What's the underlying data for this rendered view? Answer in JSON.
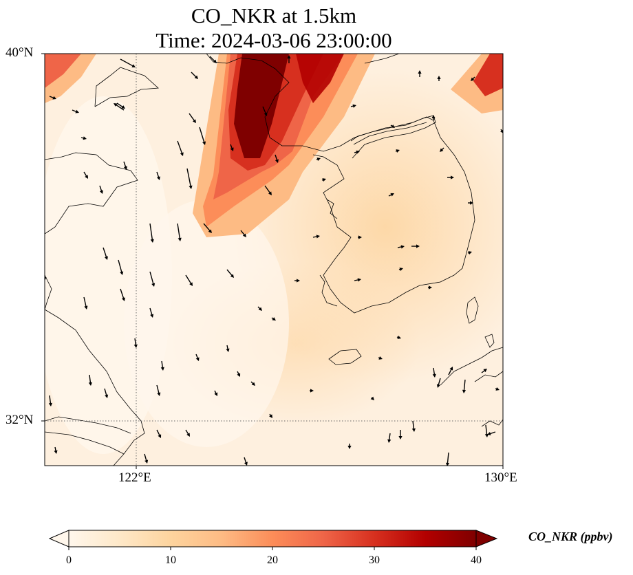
{
  "title": {
    "line1": "CO_NKR at 1.5km",
    "line2": "Time: 2024-03-06 23:00:00"
  },
  "map": {
    "lon_range": [
      120,
      130
    ],
    "lat_range": [
      31,
      40
    ],
    "gridlines": {
      "lon": [
        122
      ],
      "lat": [
        32
      ]
    },
    "lat_labels": [
      "40°N",
      "32°N"
    ],
    "lon_labels": [
      "122°E",
      "130°E"
    ],
    "field_color_background": "#fef0df",
    "plume_color": "#7f0000"
  },
  "colorbar": {
    "label": "CO_NKR (ppbv)",
    "min": 0,
    "max": 40,
    "ticks": [
      {
        "value": 0,
        "label": "0"
      },
      {
        "value": 10,
        "label": "10"
      },
      {
        "value": 20,
        "label": "20"
      },
      {
        "value": 30,
        "label": "30"
      },
      {
        "value": 40,
        "label": "40"
      }
    ],
    "colors": [
      "#fff7ec",
      "#fee8c8",
      "#fdd49e",
      "#fdbb84",
      "#fc8d59",
      "#ef6548",
      "#d7301f",
      "#b30000",
      "#7f0000"
    ],
    "extend": "both"
  }
}
